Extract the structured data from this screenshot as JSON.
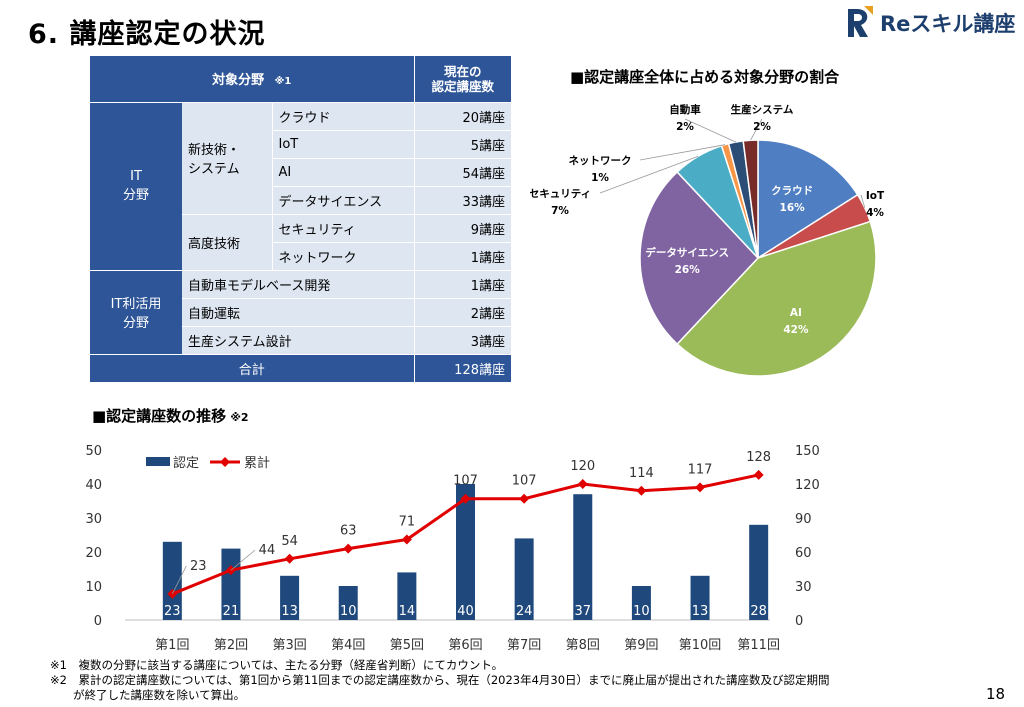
{
  "header": {
    "title": "6. 講座認定の状況",
    "logo_text": "Reスキル講座"
  },
  "table": {
    "header_area": "対象分野",
    "header_area_note": "※1",
    "header_count": [
      "現在の",
      "認定講座数"
    ],
    "it_category": [
      "IT",
      "分野"
    ],
    "it_use_category": [
      "IT利活用",
      "分野"
    ],
    "subgroups": {
      "new_tech": [
        "新技術・",
        "システム"
      ],
      "advanced": "高度技術"
    },
    "rows": [
      {
        "name": "クラウド",
        "count": "20講座"
      },
      {
        "name": "IoT",
        "count": "5講座"
      },
      {
        "name": "AI",
        "count": "54講座"
      },
      {
        "name": "データサイエンス",
        "count": "33講座"
      },
      {
        "name": "セキュリティ",
        "count": "9講座"
      },
      {
        "name": "ネットワーク",
        "count": "1講座"
      },
      {
        "name": "自動車モデルベース開発",
        "count": "1講座"
      },
      {
        "name": "自動運転",
        "count": "2講座"
      },
      {
        "name": "生産システム設計",
        "count": "3講座"
      }
    ],
    "total_label": "合計",
    "total_count": "128講座"
  },
  "pie_title": "■認定講座全体に占める対象分野の割合",
  "bar_title": "■認定講座数の推移",
  "bar_title_note": "※2",
  "chart_data": [
    {
      "type": "pie",
      "title": "■認定講座全体に占める対象分野の割合",
      "labels": [
        "クラウド",
        "IoT",
        "AI",
        "データサイエンス",
        "セキュリティ",
        "ネットワーク",
        "自動車",
        "生産システム"
      ],
      "values": [
        16,
        4,
        42,
        26,
        7,
        1,
        2,
        2
      ],
      "value_labels": [
        "16%",
        "4%",
        "42%",
        "26%",
        "7%",
        "1%",
        "2%",
        "2%"
      ],
      "colors": [
        "#4f7fc2",
        "#c94c4c",
        "#9bbb59",
        "#8064a2",
        "#4bacc6",
        "#f79646",
        "#2c4d75",
        "#772c2a"
      ]
    },
    {
      "type": "bar",
      "title": "■認定講座数の推移",
      "categories": [
        "第1回",
        "第2回",
        "第3回",
        "第4回",
        "第5回",
        "第6回",
        "第7回",
        "第8回",
        "第9回",
        "第10回",
        "第11回"
      ],
      "series": [
        {
          "name": "認定",
          "type": "bar",
          "axis": "left",
          "color": "#1f497d",
          "values": [
            23,
            21,
            13,
            10,
            14,
            40,
            24,
            37,
            10,
            13,
            28
          ]
        },
        {
          "name": "累計",
          "type": "line",
          "axis": "right",
          "color": "#e00000",
          "values": [
            23,
            44,
            54,
            63,
            71,
            107,
            107,
            120,
            114,
            117,
            128
          ]
        }
      ],
      "ylim_left": [
        0,
        50
      ],
      "ylim_right": [
        0,
        150
      ],
      "yticks_left": [
        0,
        10,
        20,
        30,
        40,
        50
      ],
      "yticks_right": [
        0,
        30,
        60,
        90,
        120,
        150
      ],
      "legend": "top-left",
      "grid": false
    }
  ],
  "notes": [
    "※1　複数の分野に該当する講座については、主たる分野（経産省判断）にてカウント。",
    "※2　累計の認定講座数については、第1回から第11回までの認定講座数から、現在（2023年4月30日）までに廃止届が提出された講座数及び認定期間",
    "　　が終了した講座数を除いて算出。"
  ],
  "page_number": "18"
}
